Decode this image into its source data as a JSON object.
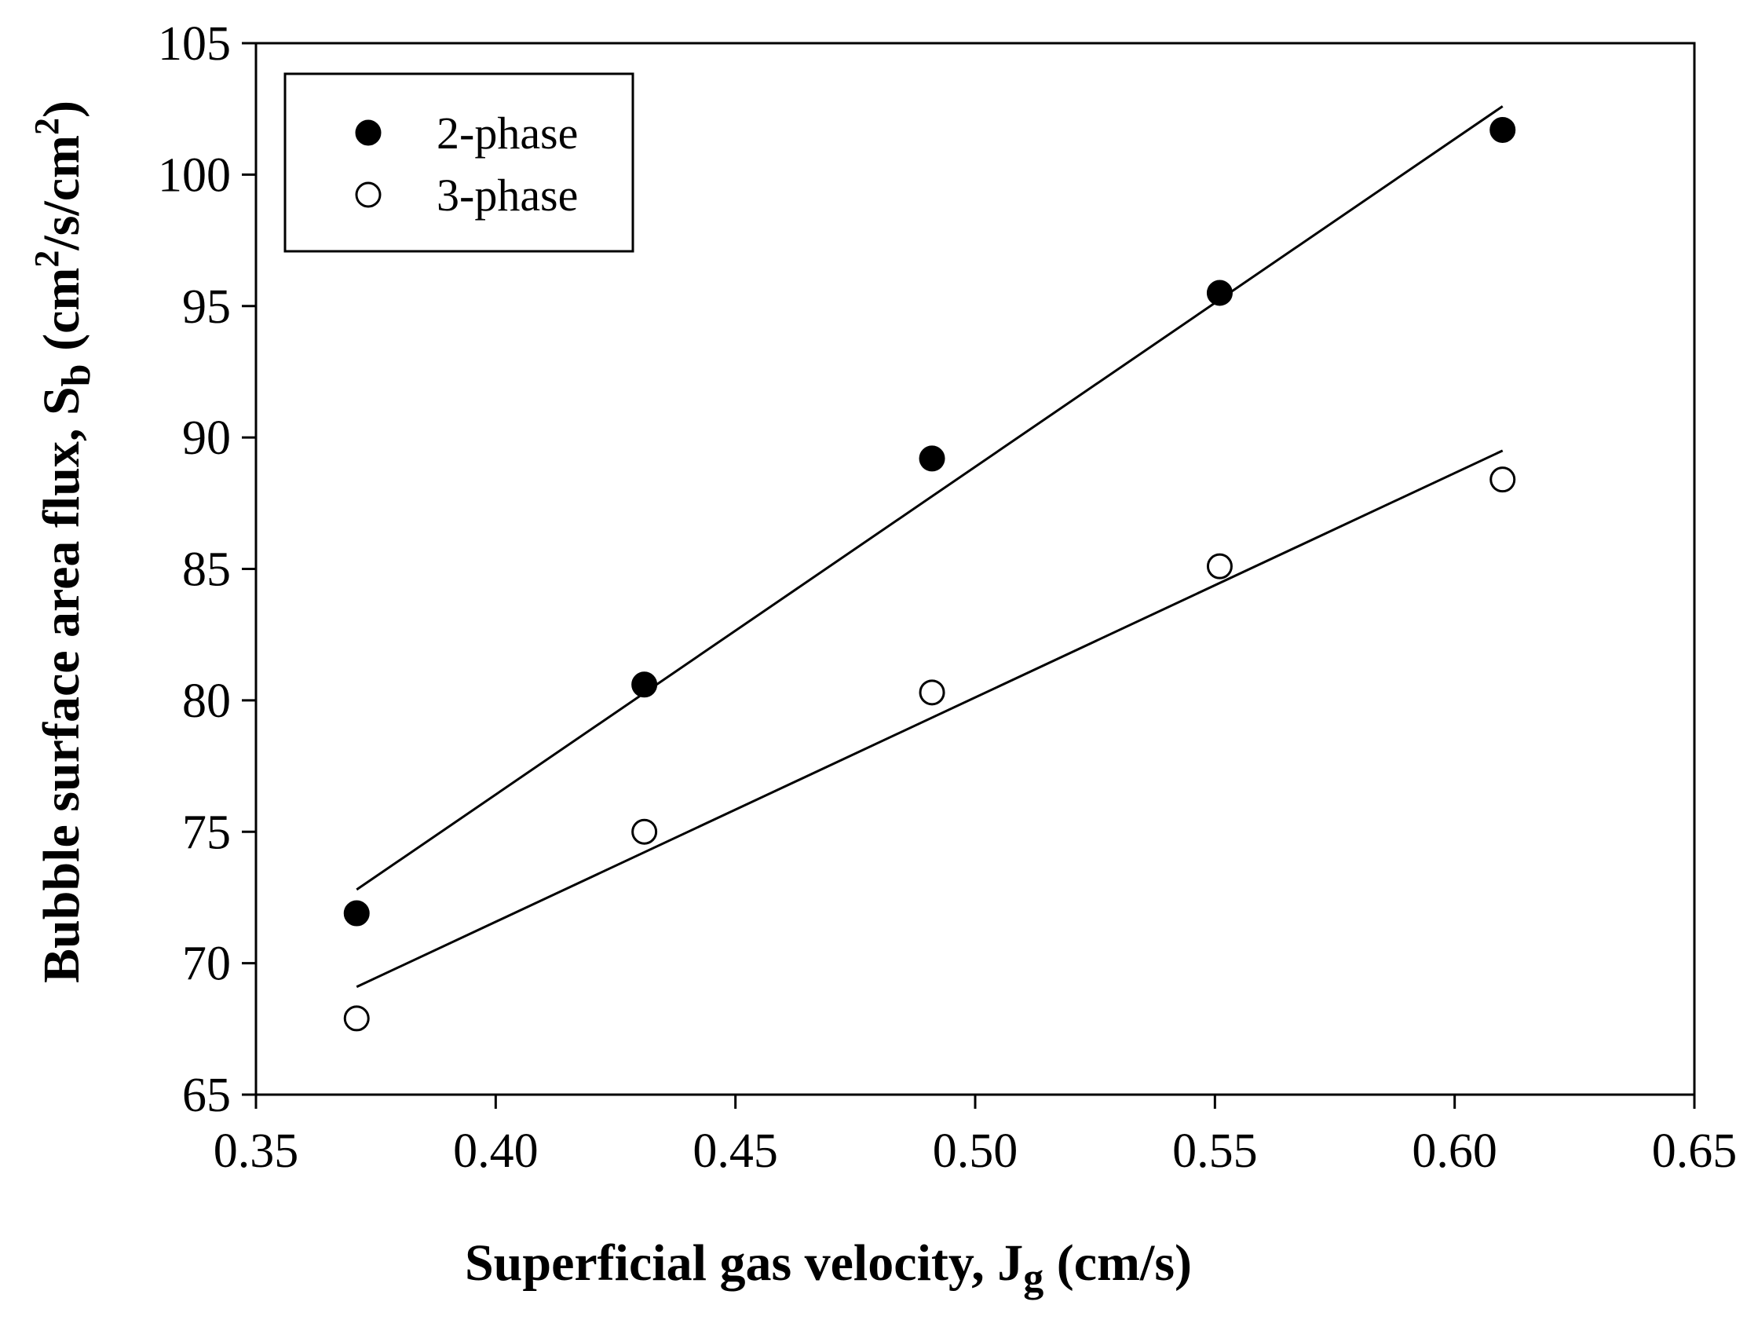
{
  "chart_data": {
    "type": "scatter",
    "title": "",
    "xlabel": {
      "main": "Superficial gas velocity, J",
      "sub": "g",
      "unit": " (cm/s)"
    },
    "ylabel": {
      "main": "Bubble surface area flux, S",
      "sub": "b",
      "unit_open": " (cm",
      "sup1": "2",
      "unit_mid": "/s/cm",
      "sup2": "2",
      "unit_close": ")"
    },
    "xlim": [
      0.35,
      0.65
    ],
    "ylim": [
      65,
      105
    ],
    "xticks": [
      0.35,
      0.4,
      0.45,
      0.5,
      0.55,
      0.6,
      0.65
    ],
    "xtick_labels": [
      "0.35",
      "0.40",
      "0.45",
      "0.50",
      "0.55",
      "0.60",
      "0.65"
    ],
    "yticks": [
      65,
      70,
      75,
      80,
      85,
      90,
      95,
      100,
      105
    ],
    "ytick_labels": [
      "65",
      "70",
      "75",
      "80",
      "85",
      "90",
      "95",
      "100",
      "105"
    ],
    "grid": false,
    "legend_position": "top-left",
    "series": [
      {
        "name": "2-phase",
        "marker": "filled-circle",
        "x": [
          0.371,
          0.431,
          0.491,
          0.551,
          0.61
        ],
        "values": [
          71.9,
          80.6,
          89.2,
          95.5,
          101.7
        ],
        "fit": {
          "x": [
            0.371,
            0.61
          ],
          "y": [
            72.8,
            102.6
          ]
        }
      },
      {
        "name": "3-phase",
        "marker": "open-circle",
        "x": [
          0.371,
          0.431,
          0.491,
          0.551,
          0.61
        ],
        "values": [
          67.9,
          75.0,
          80.3,
          85.1,
          88.4
        ],
        "fit": {
          "x": [
            0.371,
            0.61
          ],
          "y": [
            69.1,
            89.5
          ]
        }
      }
    ]
  }
}
